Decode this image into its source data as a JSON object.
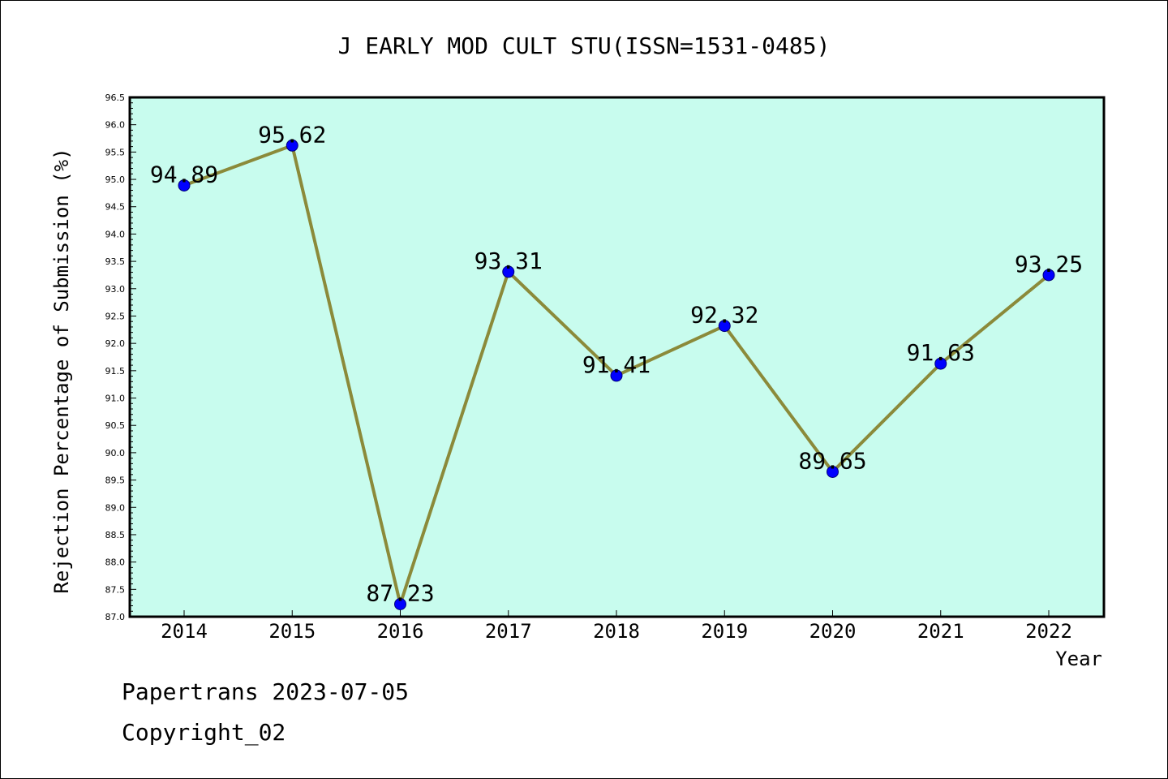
{
  "chart_data": {
    "type": "line",
    "title": "J EARLY MOD CULT STU(ISSN=1531-0485)",
    "xlabel": "Year",
    "ylabel": "Rejection Percentage of Submission (%)",
    "categories": [
      "2014",
      "2015",
      "2016",
      "2017",
      "2018",
      "2019",
      "2020",
      "2021",
      "2022"
    ],
    "values": [
      94.89,
      95.62,
      87.23,
      93.31,
      91.41,
      92.32,
      89.65,
      91.63,
      93.25
    ],
    "data_labels": [
      "94.89",
      "95.62",
      "87.23",
      "93.31",
      "91.41",
      "92.32",
      "89.65",
      "91.63",
      "93.25"
    ],
    "ylim": [
      87.0,
      96.5
    ],
    "yticks": [
      "87.0",
      "87.5",
      "88.0",
      "88.5",
      "89.0",
      "89.5",
      "90.0",
      "90.5",
      "91.0",
      "91.5",
      "92.0",
      "92.5",
      "93.0",
      "93.5",
      "94.0",
      "94.5",
      "95.0",
      "95.5",
      "96.0",
      "96.5"
    ],
    "grid": false,
    "colors": {
      "plot_background": "#c8fcee",
      "line": "#8b8a3a",
      "marker": "#0000ff"
    }
  },
  "footer": {
    "line1": "Papertrans 2023-07-05",
    "line2": "Copyright_02"
  }
}
